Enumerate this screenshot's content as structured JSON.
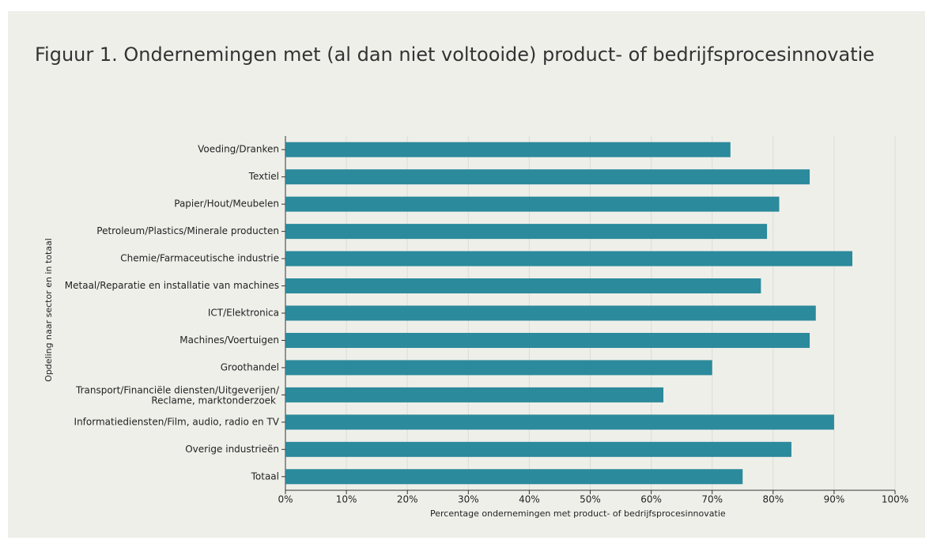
{
  "chart_data": {
    "type": "barh",
    "title": "Figuur 1. Ondernemingen met (al dan niet voltooide) product- of bedrijfsprocesinnovatie",
    "xlabel": "Percentage ondernemingen met product- of bedrijfsprocesinnovatie",
    "ylabel": "Opdeling naar sector en in totaal",
    "categories": [
      "Voeding/Dranken",
      "Textiel",
      "Papier/Hout/Meubelen",
      "Petroleum/Plastics/Minerale producten",
      "Chemie/Farmaceutische industrie",
      "Metaal/Reparatie en installatie van machines",
      "ICT/Elektronica",
      "Machines/Voertuigen",
      "Groothandel",
      "Transport/Financiële diensten/Uitgeverijen/\nReclame, marktonderzoek",
      "Informatiediensten/Film, audio, radio en TV",
      "Overige industrieën",
      "Totaal"
    ],
    "values": [
      73,
      86,
      81,
      79,
      93,
      78,
      87,
      86,
      70,
      62,
      90,
      83,
      75
    ],
    "color": "#2b8a9b",
    "xlim": [
      0,
      100
    ],
    "xticks": [
      {
        "value": 0,
        "label": "0%"
      },
      {
        "value": 10,
        "label": "10%"
      },
      {
        "value": 20,
        "label": "20%"
      },
      {
        "value": 30,
        "label": "30%"
      },
      {
        "value": 40,
        "label": "40%"
      },
      {
        "value": 50,
        "label": "50%"
      },
      {
        "value": 60,
        "label": "60%"
      },
      {
        "value": 70,
        "label": "70%"
      },
      {
        "value": 80,
        "label": "80%"
      },
      {
        "value": 90,
        "label": "90%"
      },
      {
        "value": 100,
        "label": "100%"
      }
    ],
    "grid": true
  }
}
